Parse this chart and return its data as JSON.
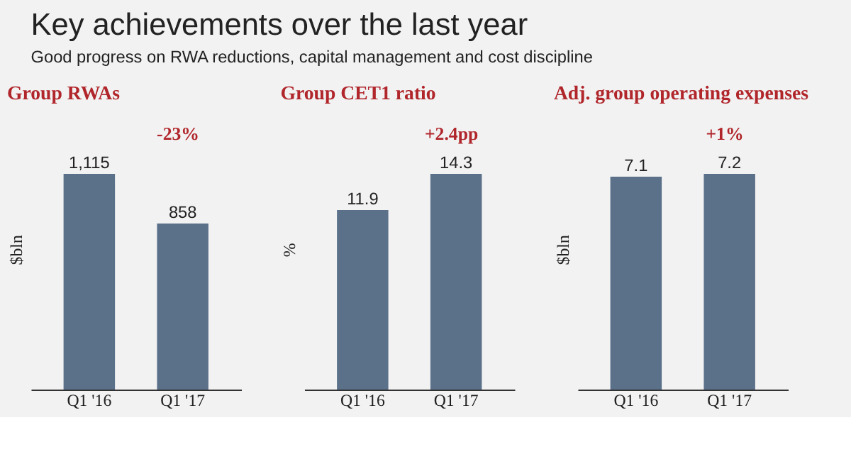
{
  "chart_data": [
    {
      "type": "other",
      "title": "Key achievements over the last year",
      "subtitle": "Good progress on RWA reductions, capital management and cost discipline"
    },
    {
      "type": "bar",
      "title": "Group RWAs",
      "ylabel": "$bln",
      "categories": [
        "Q1 '16",
        "Q1 '17"
      ],
      "values": [
        1115,
        858
      ],
      "value_labels": [
        "1,115",
        "858"
      ],
      "color": "#5b718a",
      "annotations": [
        "-23%"
      ]
    },
    {
      "type": "bar",
      "title": "Group CET1 ratio",
      "ylabel": "%",
      "categories": [
        "Q1 '16",
        "Q1 '17"
      ],
      "values": [
        11.9,
        14.3
      ],
      "data_labels": true,
      "color": "#5b718a",
      "annotations": [
        "+2.4pp"
      ]
    },
    {
      "type": "bar",
      "title": "Adj. group operating expenses",
      "ylabel": "$bln",
      "categories": [
        "Q1 '16",
        "Q1 '17"
      ],
      "values": [
        7.1,
        7.2
      ],
      "data_labels": true,
      "color": "#5b718a",
      "annotations": [
        "+1%"
      ]
    }
  ]
}
